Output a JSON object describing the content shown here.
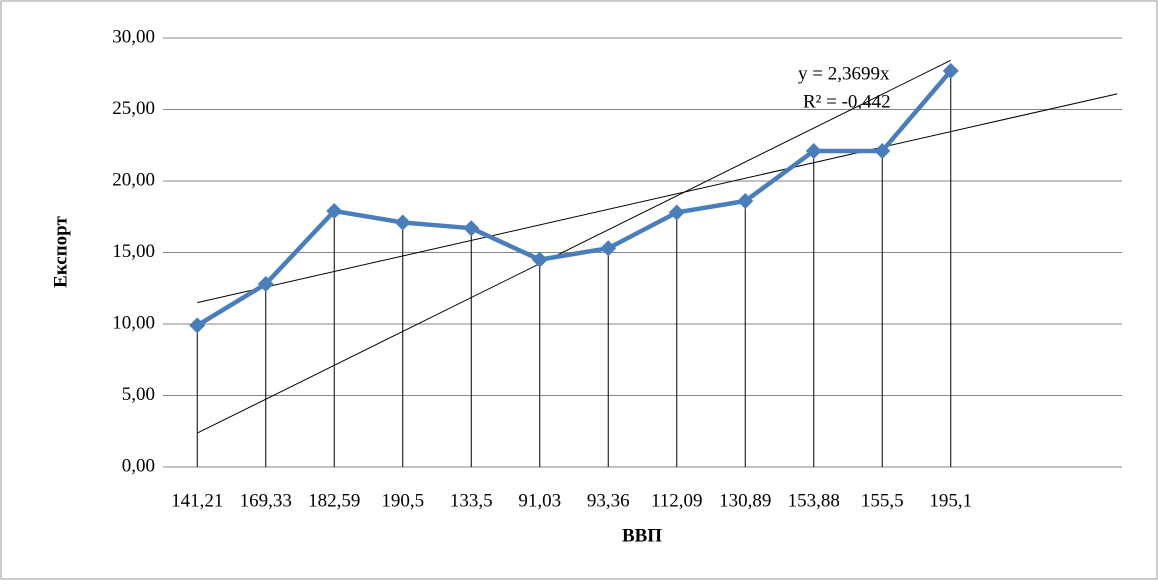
{
  "chart_data": {
    "type": "line",
    "x_label": "ВВП",
    "y_label": "Експорт",
    "categories": [
      "141,21",
      "169,33",
      "182,59",
      "190,5",
      "133,5",
      "91,03",
      "93,36",
      "112,09",
      "130,89",
      "153,88",
      "155,5",
      "195,1",
      null,
      null
    ],
    "series": [
      {
        "name": "Експорт",
        "color": "#4a7ebb",
        "values": [
          9.9,
          12.8,
          17.9,
          17.1,
          16.7,
          14.5,
          15.3,
          17.8,
          18.6,
          22.1,
          22.1,
          27.7,
          null,
          null
        ]
      }
    ],
    "ylim": [
      0,
      30
    ],
    "yticks": [
      {
        "value": 0,
        "label": "0,00"
      },
      {
        "value": 5,
        "label": "5,00"
      },
      {
        "value": 10,
        "label": "10,00"
      },
      {
        "value": 15,
        "label": "15,00"
      },
      {
        "value": 20,
        "label": "20,00"
      },
      {
        "value": 25,
        "label": "25,00"
      },
      {
        "value": 30,
        "label": "30,00"
      }
    ],
    "grid": true,
    "drop_lines": true,
    "trendlines": [
      {
        "slope": 2.3699,
        "intercept": 0,
        "from": 1,
        "to": 12,
        "color": "#000000"
      },
      {
        "slope": 1.087,
        "intercept": 10.41,
        "from": 1,
        "to": 14.43,
        "color": "#000000"
      }
    ],
    "annotations": [
      "y = 2,3699x",
      "R² = -0,442"
    ]
  }
}
